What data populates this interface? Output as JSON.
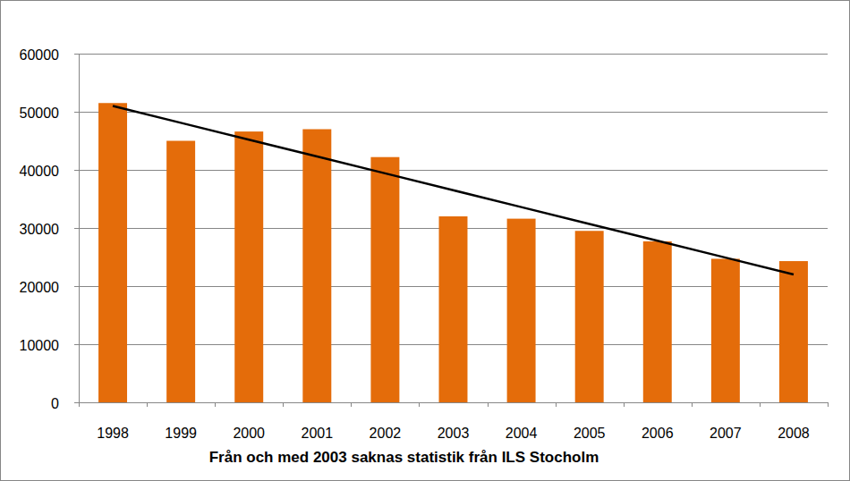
{
  "chart_data": {
    "type": "bar",
    "x_label": "Från och med 2003 saknas statistik från ILS Stocholm",
    "categories": [
      "1998",
      "1999",
      "2000",
      "2001",
      "2002",
      "2003",
      "2004",
      "2005",
      "2006",
      "2007",
      "2008"
    ],
    "series": [
      {
        "type": "bar",
        "color": "#e46c0a",
        "values": [
          51500,
          45000,
          46600,
          47000,
          42200,
          32000,
          31600,
          29500,
          27700,
          24700,
          24300
        ]
      },
      {
        "type": "line",
        "color": "#000000",
        "values": [
          51000,
          48100,
          45200,
          42300,
          39400,
          36500,
          33600,
          30700,
          27800,
          24900,
          22000
        ]
      }
    ],
    "ylim": [
      0,
      60000
    ],
    "yticks": [
      0,
      10000,
      20000,
      30000,
      40000,
      50000,
      60000
    ],
    "grid": true
  }
}
